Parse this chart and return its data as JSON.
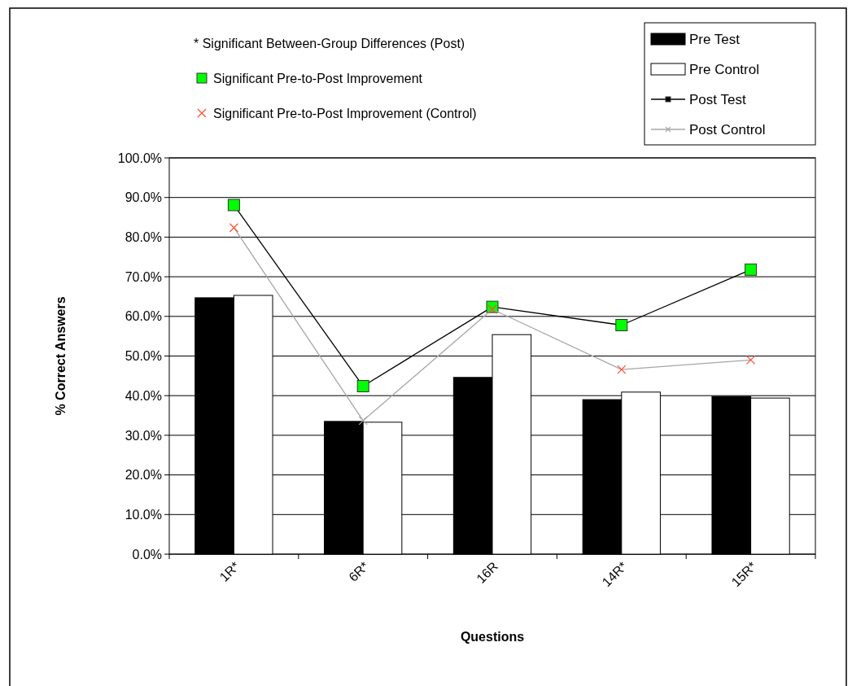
{
  "chart_data": {
    "type": "bar",
    "xlabel": "Questions",
    "ylabel": "% Correct Answers",
    "categories": [
      "1R*",
      "6R*",
      "16R",
      "14R*",
      "15R*"
    ],
    "series": [
      {
        "name": "Pre Test",
        "color": "#000000",
        "values": [
          64.7,
          33.5,
          44.6,
          39.0,
          39.8
        ]
      },
      {
        "name": "Pre Control",
        "color": "#ffffff",
        "values": [
          65.3,
          33.3,
          55.4,
          40.9,
          39.4
        ]
      },
      {
        "name": "Post Test",
        "type": "line",
        "color": "#000000",
        "marker": "square",
        "colors": [
          "#00ff00",
          "#00ff00",
          "#00ff00",
          "#00ff00",
          "#00ff00"
        ],
        "values": [
          88.1,
          42.4,
          62.4,
          57.8,
          71.8
        ]
      },
      {
        "name": "Post Control",
        "type": "line",
        "color": "#a6a6a6",
        "marker": "cross",
        "colors": [
          "#ff4d2e",
          "#a6a6a6",
          "#ff4d2e",
          "#ff4d2e",
          "#ff4d2e"
        ],
        "values": [
          82.4,
          33.7,
          61.8,
          46.6,
          49.0
        ]
      }
    ],
    "ylim": [
      0,
      100
    ],
    "yticks": [
      {
        "value": 0,
        "label": "0.0%"
      },
      {
        "value": 10,
        "label": "10.0%"
      },
      {
        "value": 20,
        "label": "20.0%"
      },
      {
        "value": 30,
        "label": "30.0%"
      },
      {
        "value": 40,
        "label": "40.0%"
      },
      {
        "value": 50,
        "label": "50.0%"
      },
      {
        "value": 60,
        "label": "60.0%"
      },
      {
        "value": 70,
        "label": "70.0%"
      },
      {
        "value": 80,
        "label": "80.0%"
      },
      {
        "value": 90,
        "label": "90.0%"
      },
      {
        "value": 100,
        "label": "100.0%"
      }
    ],
    "grid": "y",
    "legend": "top right",
    "annotations": [
      "* Significant Between-Group Differences (Post)",
      "Significant Pre-to-Post Improvement",
      "Significant Pre-to-Post Improvement (Control)"
    ]
  }
}
